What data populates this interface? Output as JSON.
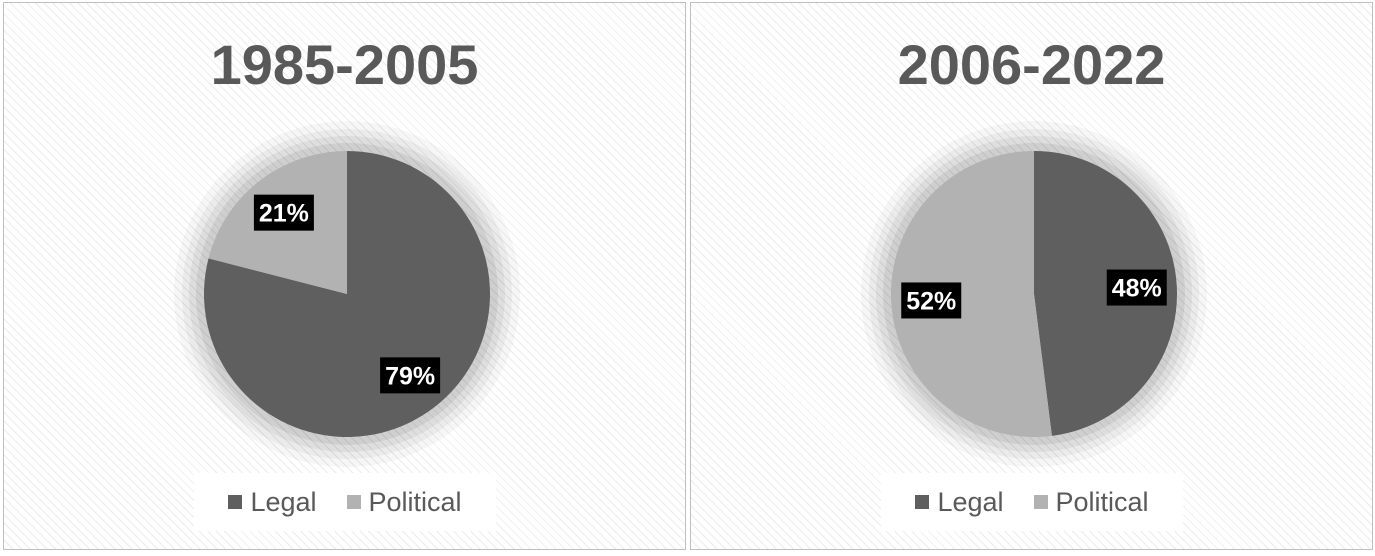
{
  "chart_data": [
    {
      "type": "pie",
      "title": "1985-2005",
      "categories": [
        "Legal",
        "Political"
      ],
      "values": [
        79,
        21
      ],
      "labels": [
        "79%",
        "21%"
      ],
      "colors": [
        "#5f5f5f",
        "#b2b2b2"
      ],
      "legend": "bottom"
    },
    {
      "type": "pie",
      "title": "2006-2022",
      "categories": [
        "Legal",
        "Political"
      ],
      "values": [
        48,
        52
      ],
      "labels": [
        "48%",
        "52%"
      ],
      "colors": [
        "#5f5f5f",
        "#b2b2b2"
      ],
      "legend": "bottom"
    }
  ]
}
